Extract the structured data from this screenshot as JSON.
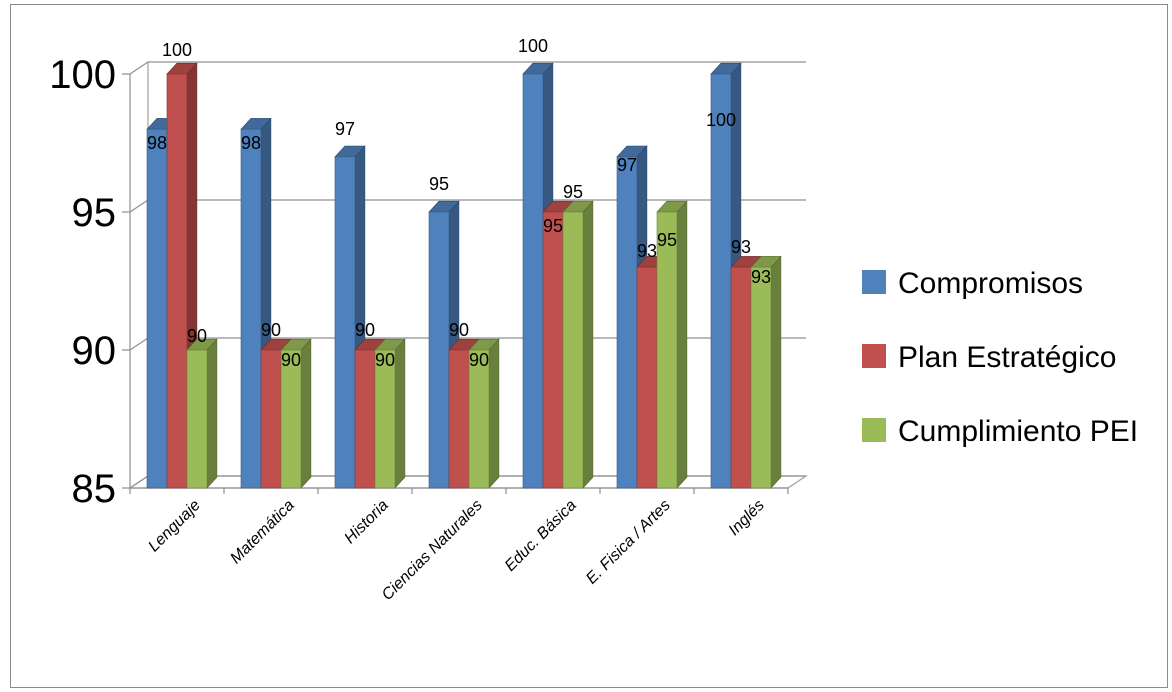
{
  "chart_data": {
    "type": "bar",
    "title": "",
    "xlabel": "",
    "ylabel": "",
    "ylim": [
      85,
      100
    ],
    "yticks": [
      85,
      90,
      95,
      100
    ],
    "grid": true,
    "legend_position": "right",
    "categories": [
      "Lenguaje",
      "Matemática",
      "Historia",
      "Ciencias Naturales",
      "Educ. Básica",
      "E. Fisica / Artes",
      "Inglés"
    ],
    "series": [
      {
        "name": "Compromisos",
        "color": "#4F81BD",
        "values": [
          98,
          98,
          97,
          95,
          100,
          97,
          100
        ]
      },
      {
        "name": "Plan Estratégico",
        "color": "#C0504D",
        "values": [
          100,
          90,
          90,
          90,
          95,
          93,
          93
        ]
      },
      {
        "name": "Cumplimiento  PEI",
        "color": "#9BBB59",
        "values": [
          90,
          90,
          90,
          90,
          95,
          95,
          93
        ]
      }
    ]
  }
}
